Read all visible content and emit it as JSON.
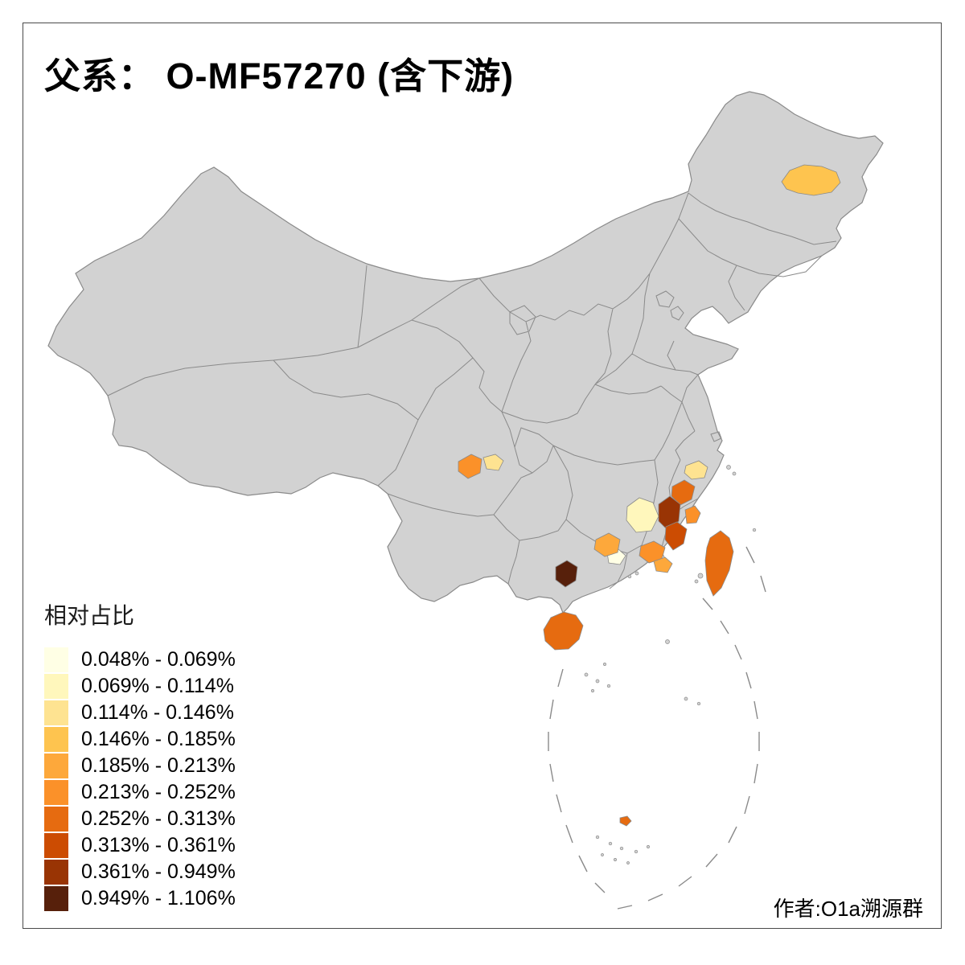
{
  "title": "父系： O-MF57270 (含下游)",
  "author": "作者:O1a溯源群",
  "legend": {
    "title": "相对占比",
    "items": [
      {
        "label": "0.048% - 0.069%",
        "color": "#FFFFE5"
      },
      {
        "label": "0.069% - 0.114%",
        "color": "#FFF7BC"
      },
      {
        "label": "0.114% - 0.146%",
        "color": "#FEE391"
      },
      {
        "label": "0.146% - 0.185%",
        "color": "#FEC44F"
      },
      {
        "label": "0.185% - 0.213%",
        "color": "#FDA83B"
      },
      {
        "label": "0.213% - 0.252%",
        "color": "#FB9129"
      },
      {
        "label": "0.252% - 0.313%",
        "color": "#E66B10"
      },
      {
        "label": "0.313% - 0.361%",
        "color": "#CC4C02"
      },
      {
        "label": "0.361% - 0.949%",
        "color": "#993404"
      },
      {
        "label": "0.949% - 1.106%",
        "color": "#57200B"
      }
    ]
  },
  "map": {
    "land_color": "#D2D2D2",
    "boundary_color": "#8A8A8A",
    "background_color": "#FFFFFF",
    "regions": [
      {
        "id": "patch-heilongjiang-central",
        "range": "0.146% - 0.185%",
        "color": "#FEC44F"
      },
      {
        "id": "patch-sichuan-chengdu",
        "range": "0.213% - 0.252%",
        "color": "#FB9129"
      },
      {
        "id": "patch-sichuan-east",
        "range": "0.114% - 0.146%",
        "color": "#FEE391"
      },
      {
        "id": "patch-hunan-east",
        "range": "0.069% - 0.114%",
        "color": "#FFF7BC"
      },
      {
        "id": "patch-zhejiang-west",
        "range": "0.252% - 0.313%",
        "color": "#E66B10"
      },
      {
        "id": "patch-zhejiang-coast",
        "range": "0.114% - 0.146%",
        "color": "#FEE391"
      },
      {
        "id": "patch-jiangxi-northeast",
        "range": "0.361% - 0.949%",
        "color": "#993404"
      },
      {
        "id": "patch-fujian-west",
        "range": "0.313% - 0.361%",
        "color": "#CC4C02"
      },
      {
        "id": "patch-fujian-northeast",
        "range": "0.213% - 0.252%",
        "color": "#FB9129"
      },
      {
        "id": "patch-guangdong-north",
        "range": "0.213% - 0.252%",
        "color": "#FB9129"
      },
      {
        "id": "patch-guangdong-east",
        "range": "0.185% - 0.213%",
        "color": "#FDA83B"
      },
      {
        "id": "patch-guangdong-pearl",
        "range": "0.048% - 0.069%",
        "color": "#FFFFE5"
      },
      {
        "id": "patch-guangxi-north",
        "range": "0.185% - 0.213%",
        "color": "#FDA83B"
      },
      {
        "id": "patch-guangxi-southwest",
        "range": "0.949% - 1.106%",
        "color": "#57200B"
      },
      {
        "id": "patch-hainan",
        "range": "0.252% - 0.313%",
        "color": "#E66B10"
      },
      {
        "id": "patch-taiwan",
        "range": "0.252% - 0.313%",
        "color": "#E66B10"
      },
      {
        "id": "patch-south-china-sea-island",
        "range": "0.252% - 0.313%",
        "color": "#E66B10"
      }
    ]
  }
}
